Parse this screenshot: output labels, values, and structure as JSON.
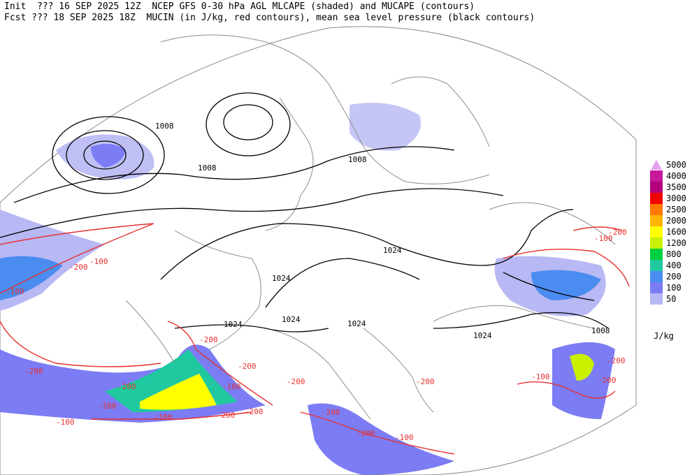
{
  "header": {
    "line1": "Init  ??? 16 SEP 2025 12Z  NCEP GFS 0-30 hPa AGL MLCAPE (shaded) and MUCAPE (contours)",
    "line2": "Fcst ??? 18 SEP 2025 18Z  MUCIN (in J/kg, red contours), mean sea level pressure (black contours)"
  },
  "legend": {
    "unit": "J/kg",
    "items": [
      {
        "label": "5000",
        "color": "#e6a0ee"
      },
      {
        "label": "4000",
        "color": "#c8189c"
      },
      {
        "label": "3500",
        "color": "#b4007c"
      },
      {
        "label": "3000",
        "color": "#f00000"
      },
      {
        "label": "2500",
        "color": "#ff7800"
      },
      {
        "label": "2000",
        "color": "#ffb400"
      },
      {
        "label": "1600",
        "color": "#ffff00"
      },
      {
        "label": "1200",
        "color": "#c8f000"
      },
      {
        "label": "800",
        "color": "#00d040"
      },
      {
        "label": "400",
        "color": "#20c8a0"
      },
      {
        "label": "200",
        "color": "#4a8cf0"
      },
      {
        "label": "100",
        "color": "#7c7cf4"
      },
      {
        "label": "50",
        "color": "#b8b8f4"
      }
    ]
  },
  "isobar_labels": [
    "1008",
    "1008",
    "1008",
    "1024",
    "1024",
    "1024",
    "1024",
    "1024",
    "1008"
  ],
  "cin_labels": [
    "-100",
    "-200",
    "-100",
    "-200",
    "-200",
    "-200",
    "-100",
    "-200",
    "-200",
    "-100",
    "-200",
    "-100",
    "-200",
    "-200",
    "-200",
    "-200",
    "-100",
    "-200",
    "-100",
    "-200",
    "-200",
    "-100",
    "-200"
  ]
}
